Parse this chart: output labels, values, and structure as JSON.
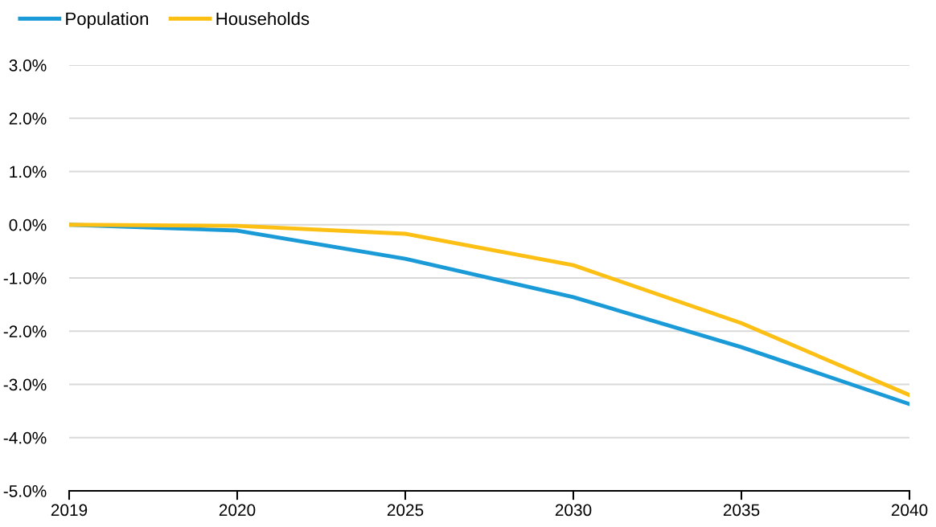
{
  "chart_data": {
    "type": "line",
    "categories": [
      "2019",
      "2020",
      "2025",
      "2030",
      "2035",
      "2040"
    ],
    "series": [
      {
        "name": "Population",
        "color": "#1a9bd7",
        "values": [
          0,
          -0.11,
          -0.64,
          -1.36,
          -2.3,
          -3.37
        ]
      },
      {
        "name": "Households",
        "color": "#fcbf14",
        "values": [
          0,
          -0.02,
          -0.17,
          -0.76,
          -1.85,
          -3.2
        ]
      }
    ],
    "ylim": [
      -5,
      3
    ],
    "yticks": [
      {
        "value": -5,
        "label": "-5.0%"
      },
      {
        "value": -4,
        "label": "-4.0%"
      },
      {
        "value": -3,
        "label": "-3.0%"
      },
      {
        "value": -2,
        "label": "-2.0%"
      },
      {
        "value": -1,
        "label": "-1.0%"
      },
      {
        "value": 0,
        "label": "0.0%"
      },
      {
        "value": 1,
        "label": "1.0%"
      },
      {
        "value": 2,
        "label": "2.0%"
      },
      {
        "value": 3,
        "label": "3.0%"
      }
    ],
    "grid": "y",
    "legend": "top left",
    "marker": "none",
    "line_style": "solid"
  }
}
